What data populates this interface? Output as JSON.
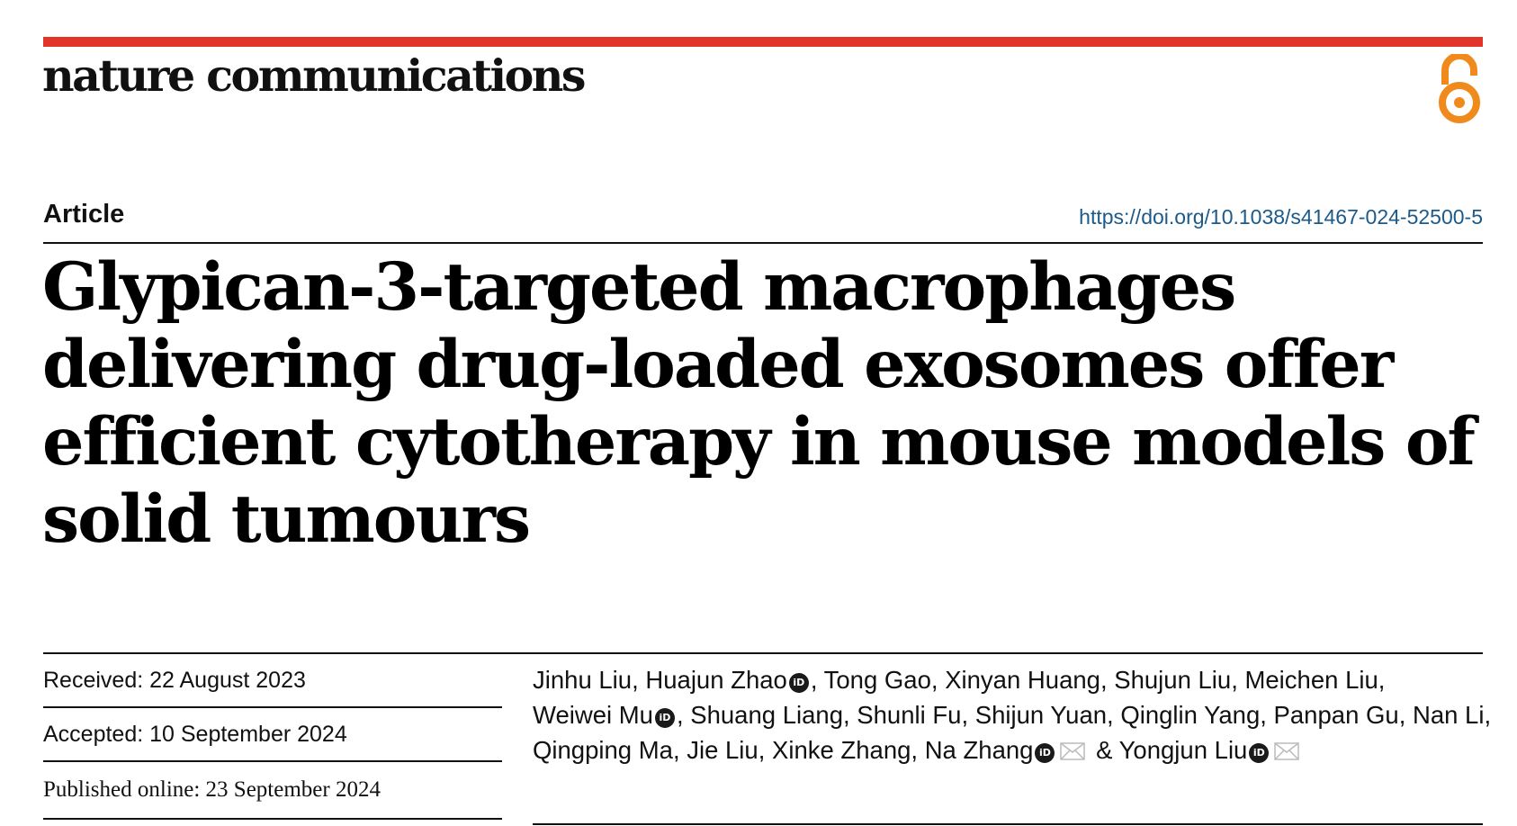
{
  "header": {
    "journal_name": "nature communications",
    "open_access_icon": "open-access-icon",
    "accent_color": "#e3342a",
    "oa_color": "#f08a1c"
  },
  "article": {
    "type": "Article",
    "doi": "https://doi.org/10.1038/s41467-024-52500-5",
    "title": "Glypican-3-targeted macrophages delivering drug-loaded exosomes offer efficient cytotherapy in mouse models of solid tumours"
  },
  "dates": {
    "received": "Received: 22 August 2023",
    "accepted": "Accepted: 10 September 2024",
    "published": "Published online: 23 September 2024"
  },
  "authors": [
    {
      "name": "Jinhu Liu",
      "sep": ", "
    },
    {
      "name": "Huajun Zhao",
      "orcid": true,
      "sep": ", "
    },
    {
      "name": "Tong Gao",
      "sep": ", "
    },
    {
      "name": "Xinyan Huang",
      "sep": ", "
    },
    {
      "name": "Shujun Liu",
      "sep": ", "
    },
    {
      "name": "Meichen Liu",
      "sep": ", "
    },
    {
      "name": "Weiwei Mu",
      "orcid": true,
      "sep": ", "
    },
    {
      "name": "Shuang Liang",
      "sep": ", "
    },
    {
      "name": "Shunli Fu",
      "sep": ", "
    },
    {
      "name": "Shijun Yuan",
      "sep": ", "
    },
    {
      "name": "Qinglin Yang",
      "sep": ", "
    },
    {
      "name": "Panpan Gu",
      "sep": ", "
    },
    {
      "name": "Nan Li",
      "sep": ", "
    },
    {
      "name": "Qingping Ma",
      "sep": ", "
    },
    {
      "name": "Jie Liu",
      "sep": ", "
    },
    {
      "name": "Xinke Zhang",
      "sep": ", "
    },
    {
      "name": "Na Zhang",
      "orcid": true,
      "email": true,
      "sep": " & "
    },
    {
      "name": "Yongjun Liu",
      "orcid": true,
      "email": true,
      "sep": ""
    }
  ],
  "orcid_label": "iD"
}
